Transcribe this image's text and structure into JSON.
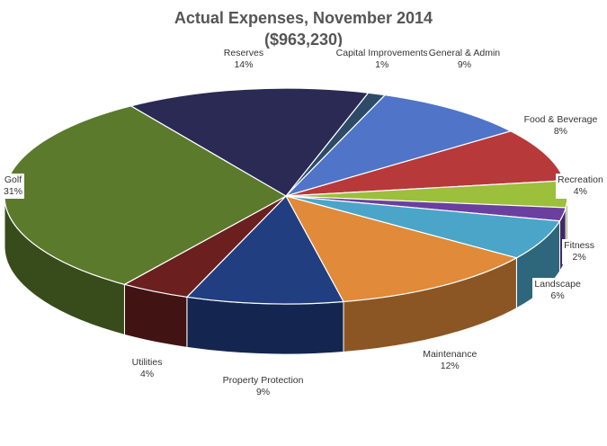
{
  "chart_data": {
    "type": "pie",
    "title": "Actual Expenses, November 2014",
    "subtitle": "($963,230)",
    "slices": [
      {
        "label": "Capital Improvements",
        "percent_label": "1%",
        "value": 1,
        "color": "#2d4a66"
      },
      {
        "label": "General & Admin",
        "percent_label": "9%",
        "value": 9,
        "color": "#4f74c8"
      },
      {
        "label": "Food & Beverage",
        "percent_label": "8%",
        "value": 8,
        "color": "#b8393a"
      },
      {
        "label": "Recreation",
        "percent_label": "4%",
        "value": 4,
        "color": "#9cbf3c"
      },
      {
        "label": "Fitness",
        "percent_label": "2%",
        "value": 2,
        "color": "#6b3fa0"
      },
      {
        "label": "Landscape",
        "percent_label": "6%",
        "value": 6,
        "color": "#4aa5c8"
      },
      {
        "label": "Maintenance",
        "percent_label": "12%",
        "value": 12,
        "color": "#e08a3a"
      },
      {
        "label": "Property Protection",
        "percent_label": "9%",
        "value": 9,
        "color": "#213e80"
      },
      {
        "label": "Utilities",
        "percent_label": "4%",
        "value": 4,
        "color": "#6b1f1f"
      },
      {
        "label": "Golf",
        "percent_label": "31%",
        "value": 31,
        "color": "#5b7a2c"
      },
      {
        "label": "Reserves",
        "percent_label": "14%",
        "value": 14,
        "color": "#2a2a55"
      }
    ]
  }
}
